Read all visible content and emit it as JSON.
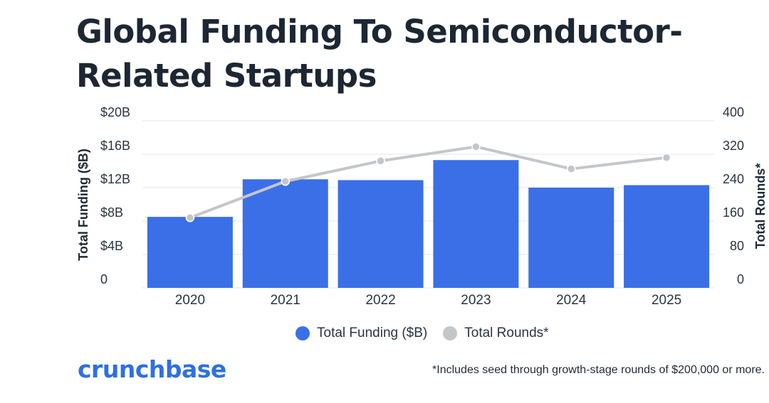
{
  "title_line1": "Global Funding To Semiconductor-",
  "title_line2": "Related Startups",
  "chart_data": {
    "type": "bar+line",
    "categories": [
      "2020",
      "2021",
      "2022",
      "2023",
      "2024",
      "2025"
    ],
    "series": [
      {
        "name": "Total Funding ($B)",
        "type": "bar",
        "axis": "left",
        "color": "#3b6fe8",
        "values": [
          8.5,
          13.0,
          12.9,
          15.3,
          12.0,
          12.3
        ]
      },
      {
        "name": "Total Rounds*",
        "type": "line",
        "axis": "right",
        "color": "#c4c6c9",
        "values": [
          168,
          255,
          304,
          338,
          285,
          312
        ]
      }
    ],
    "left_axis": {
      "label": "Total Funding ($B)",
      "ylim": [
        0,
        20
      ],
      "ticks": [
        "0",
        "$4B",
        "$8B",
        "$12B",
        "$16B",
        "$20B"
      ]
    },
    "right_axis": {
      "label": "Total Rounds*",
      "ylim": [
        0,
        400
      ],
      "ticks": [
        "0",
        "80",
        "160",
        "240",
        "320",
        "400"
      ]
    },
    "grid": true,
    "legend_position": "bottom-center"
  },
  "legend": {
    "funding_label": "Total Funding ($B)",
    "rounds_label": "Total Rounds*",
    "funding_color": "#3b6fe8",
    "rounds_color": "#c4c6c9"
  },
  "brand": "crunchbase",
  "footnote": "*Includes seed through growth-stage rounds of $200,000 or more."
}
